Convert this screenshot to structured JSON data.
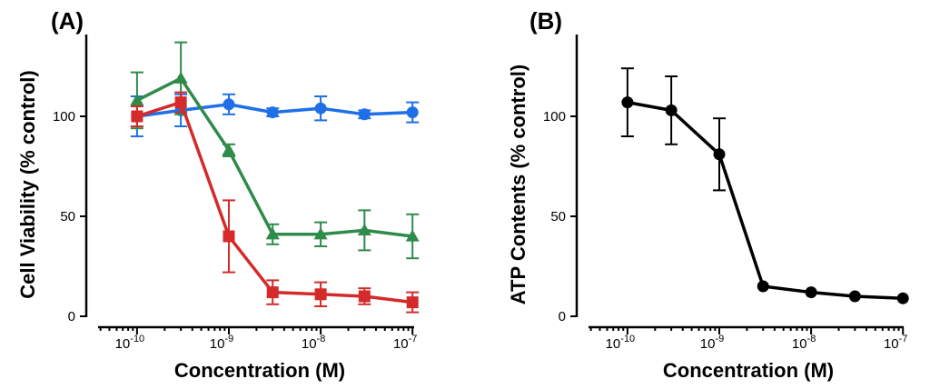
{
  "chart_data": [
    {
      "type": "line",
      "panel_label": "(A)",
      "title": "",
      "xlabel": "Concentration (M)",
      "ylabel": "Cell Viability (% control)",
      "xscale": "log",
      "xlim": [
        2.8e-11,
        1.5e-07
      ],
      "ylim": [
        0,
        140
      ],
      "x_ticks": [
        {
          "value": 1e-10,
          "base": "10",
          "exp": "-10"
        },
        {
          "value": 1e-09,
          "base": "10",
          "exp": "-9"
        },
        {
          "value": 1e-08,
          "base": "10",
          "exp": "-8"
        },
        {
          "value": 1e-07,
          "base": "10",
          "exp": "-7"
        }
      ],
      "y_ticks": [
        0,
        50,
        100
      ],
      "x": [
        1e-10,
        3e-10,
        1e-09,
        3e-09,
        1e-08,
        3e-08,
        1e-07
      ],
      "series": [
        {
          "name": "blue",
          "color": "#1f6fe8",
          "marker": "circle",
          "values": [
            100,
            103,
            106,
            102,
            104,
            101,
            102
          ],
          "errors": [
            10,
            8,
            5,
            2,
            6,
            2,
            5
          ]
        },
        {
          "name": "green",
          "color": "#2e8b4a",
          "marker": "triangle",
          "values": [
            108,
            119,
            83,
            41,
            41,
            43,
            40
          ],
          "errors": [
            14,
            18,
            3,
            5,
            6,
            10,
            11
          ]
        },
        {
          "name": "red",
          "color": "#d42a2a",
          "marker": "square",
          "values": [
            100,
            107,
            40,
            12,
            11,
            10,
            7
          ],
          "errors": [
            5,
            5,
            18,
            6,
            6,
            4,
            5
          ]
        }
      ]
    },
    {
      "type": "line",
      "panel_label": "(B)",
      "title": "",
      "xlabel": "Concentration (M)",
      "ylabel": "ATP Contents (% control)",
      "xscale": "log",
      "xlim": [
        2.8e-11,
        1.5e-07
      ],
      "ylim": [
        0,
        140
      ],
      "x_ticks": [
        {
          "value": 1e-10,
          "base": "10",
          "exp": "-10"
        },
        {
          "value": 1e-09,
          "base": "10",
          "exp": "-9"
        },
        {
          "value": 1e-08,
          "base": "10",
          "exp": "-8"
        },
        {
          "value": 1e-07,
          "base": "10",
          "exp": "-7"
        }
      ],
      "y_ticks": [
        0,
        50,
        100
      ],
      "x": [
        1e-10,
        3e-10,
        1e-09,
        3e-09,
        1e-08,
        3e-08,
        1e-07
      ],
      "series": [
        {
          "name": "black",
          "color": "#000000",
          "marker": "circle",
          "values": [
            107,
            103,
            81,
            15,
            12,
            10,
            9
          ],
          "errors": [
            17,
            17,
            18,
            0,
            0,
            0,
            0
          ]
        }
      ]
    }
  ]
}
